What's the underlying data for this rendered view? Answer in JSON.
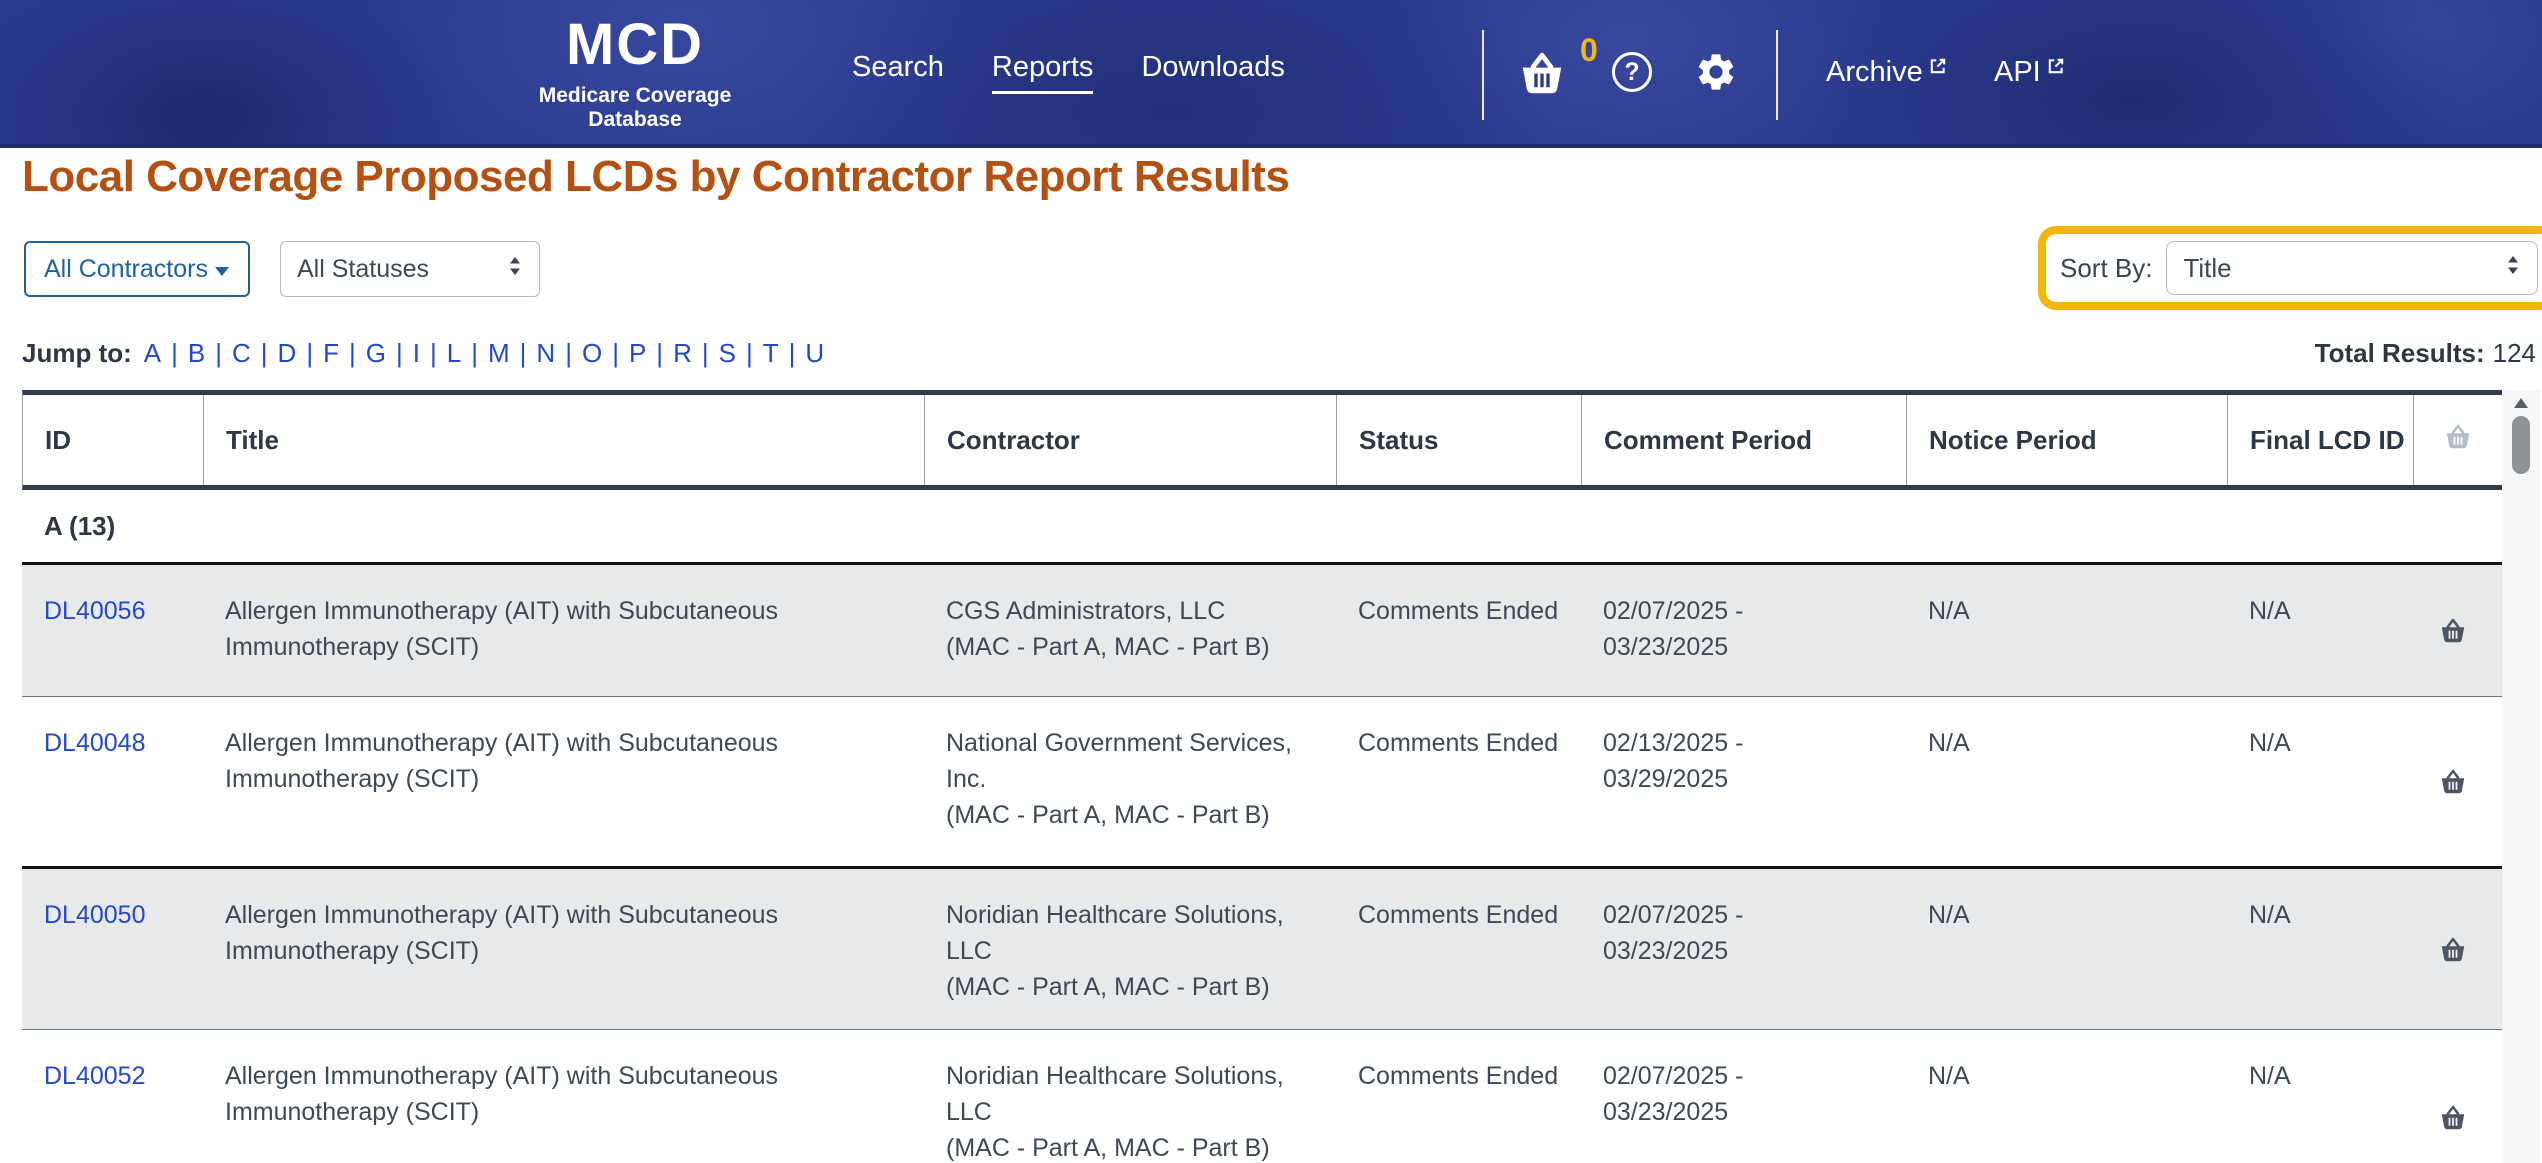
{
  "header": {
    "logo": {
      "title": "MCD",
      "subtitle": "Medicare Coverage Database"
    },
    "nav": [
      {
        "label": "Search",
        "active": false
      },
      {
        "label": "Reports",
        "active": true
      },
      {
        "label": "Downloads",
        "active": false
      }
    ],
    "cart_count": "0",
    "icons": {
      "cart": "basket-icon",
      "help": "help-icon",
      "settings": "gear-icon",
      "external": "external-link-icon"
    },
    "external_links": [
      {
        "label": "Archive"
      },
      {
        "label": "API"
      }
    ]
  },
  "page": {
    "title": "Local Coverage Proposed LCDs by Contractor Report Results",
    "filters": {
      "contractors_label": "All Contractors",
      "statuses_value": "All Statuses",
      "sort_by_label": "Sort By:",
      "sort_by_value": "Title"
    },
    "jump_to": {
      "label": "Jump to:",
      "letters": [
        "A",
        "B",
        "C",
        "D",
        "F",
        "G",
        "I",
        "L",
        "M",
        "N",
        "O",
        "P",
        "R",
        "S",
        "T",
        "U"
      ]
    },
    "total_results_label": "Total Results:",
    "total_results_value": "124"
  },
  "table": {
    "columns": [
      "ID",
      "Title",
      "Contractor",
      "Status",
      "Comment Period",
      "Notice Period",
      "Final LCD ID"
    ],
    "group_label": "A (13)",
    "rows": [
      {
        "id": "DL40056",
        "title": "Allergen Immunotherapy (AIT) with Subcutaneous Immunotherapy (SCIT)",
        "contractor_name": "CGS Administrators, LLC",
        "contractor_type": "(MAC - Part A, MAC - Part B)",
        "status": "Comments Ended",
        "comment_period": "02/07/2025 -\n03/23/2025",
        "notice_period": "N/A",
        "final_lcd_id": "N/A"
      },
      {
        "id": "DL40048",
        "title": "Allergen Immunotherapy (AIT) with Subcutaneous Immunotherapy (SCIT)",
        "contractor_name": "National Government Services, Inc.",
        "contractor_type": "(MAC - Part A, MAC - Part B)",
        "status": "Comments Ended",
        "comment_period": "02/13/2025 -\n03/29/2025",
        "notice_period": "N/A",
        "final_lcd_id": "N/A"
      },
      {
        "id": "DL40050",
        "title": "Allergen Immunotherapy (AIT) with Subcutaneous Immunotherapy (SCIT)",
        "contractor_name": "Noridian Healthcare Solutions, LLC",
        "contractor_type": "(MAC - Part A, MAC - Part B)",
        "status": "Comments Ended",
        "comment_period": "02/07/2025 -\n03/23/2025",
        "notice_period": "N/A",
        "final_lcd_id": "N/A"
      },
      {
        "id": "DL40052",
        "title": "Allergen Immunotherapy (AIT) with Subcutaneous Immunotherapy (SCIT)",
        "contractor_name": "Noridian Healthcare Solutions, LLC",
        "contractor_type": "(MAC - Part A, MAC - Part B)",
        "status": "Comments Ended",
        "comment_period": "02/07/2025 -\n03/23/2025",
        "notice_period": "N/A",
        "final_lcd_id": "N/A"
      }
    ]
  },
  "colors": {
    "header_navy": "#2c3b8e",
    "title_orange": "#b35012",
    "link_blue": "#2449c8",
    "filter_blue": "#20629e",
    "highlight_gold": "#f3b70b",
    "row_gray": "#e8e9eb",
    "dark_text": "#2e3744",
    "cart_badge_gold": "#f2b51d"
  }
}
